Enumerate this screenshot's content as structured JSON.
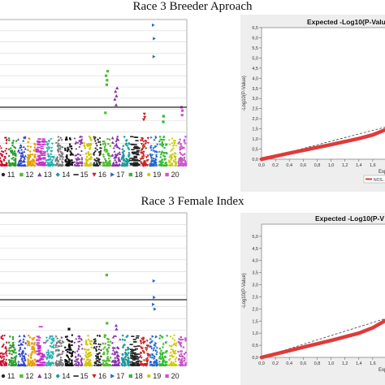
{
  "figure": {
    "title_top": "Race 3 Breeder Aproach",
    "title_bottom": "Race 3 Female Index"
  },
  "chart_data": [
    {
      "type": "scatter",
      "subtype": "manhattan",
      "panel": "top-left",
      "threshold": 5.2,
      "legend": [
        "11",
        "12",
        "13",
        "14",
        "15",
        "16",
        "17",
        "18",
        "19",
        "20"
      ],
      "chromosome_colors": [
        "#c8102e",
        "#2e9e2e",
        "#3344cc",
        "#e6a000",
        "#c830c8",
        "#20b0b0",
        "#777777",
        "#111111",
        "#8a3aa8",
        "#d4c400",
        "#2a2a2a",
        "#55bb33",
        "#8833aa",
        "#1b9a9a",
        "#222222",
        "#cc2222",
        "#2266cc",
        "#33bb33",
        "#cccc00",
        "#cc55cc"
      ],
      "peaks": [
        {
          "chr": 12,
          "values": [
            7.2,
            7.6,
            8.0,
            8.4,
            4.7
          ]
        },
        {
          "chr": 13,
          "values": [
            5.4,
            6.2,
            6.6,
            6.9,
            5.9
          ]
        },
        {
          "chr": 16,
          "values": [
            4.6,
            4.3,
            4.1
          ]
        },
        {
          "chr": 17,
          "values": [
            9.7,
            11.3,
            12.5
          ]
        },
        {
          "chr": 18,
          "values": [
            3.9,
            4.4
          ]
        },
        {
          "chr": 20,
          "values": [
            4.5,
            4.9,
            5.2
          ]
        }
      ]
    },
    {
      "type": "line",
      "subtype": "qq-plot",
      "panel": "top-right",
      "title": "Expected -Log10(P-Value)",
      "ylabel": "-Log10(P-Value)",
      "xlabel": "Expe",
      "yticks": [
        "0,0",
        "0,5",
        "1,0",
        "1,5",
        "2,0",
        "2,5",
        "3,0",
        "3,5",
        "4,0",
        "4,5",
        "5,0",
        "5,5",
        "6,0",
        "6,5"
      ],
      "xticks": [
        "0,0",
        "0,2",
        "0,4",
        "0,6",
        "0,8",
        "1,0",
        "1,2",
        "1,4",
        "1,6"
      ],
      "ylim": [
        0,
        6.5
      ],
      "xlim": [
        0,
        1.8
      ],
      "legend": "NOS...",
      "series": [
        {
          "x": [
            0.0,
            0.2,
            0.4,
            0.6,
            0.8,
            1.0,
            1.2,
            1.4,
            1.6,
            1.8
          ],
          "y": [
            0.0,
            0.15,
            0.3,
            0.44,
            0.58,
            0.72,
            0.87,
            1.02,
            1.2,
            1.48
          ]
        }
      ],
      "reference": {
        "x": [
          0,
          1.8
        ],
        "y": [
          0,
          1.6
        ]
      }
    },
    {
      "type": "scatter",
      "subtype": "manhattan",
      "panel": "bottom-left",
      "threshold": 5.6,
      "legend": [
        "11",
        "12",
        "13",
        "14",
        "15",
        "16",
        "17",
        "18",
        "19",
        "20"
      ],
      "chromosome_colors": [
        "#c8102e",
        "#2e9e2e",
        "#3344cc",
        "#e6a000",
        "#c830c8",
        "#20b0b0",
        "#777777",
        "#111111",
        "#8a3aa8",
        "#d4c400",
        "#2a2a2a",
        "#55bb33",
        "#8833aa",
        "#1b9a9a",
        "#222222",
        "#cc2222",
        "#2266cc",
        "#33bb33",
        "#cccc00",
        "#cc55cc"
      ],
      "peaks": [
        {
          "chr": 12,
          "values": [
            7.7,
            3.6
          ]
        },
        {
          "chr": 13,
          "values": [
            3.4,
            3.1
          ]
        },
        {
          "chr": 17,
          "values": [
            7.2,
            5.8,
            5.2,
            4.8
          ]
        },
        {
          "chr": 5,
          "values": [
            3.3
          ]
        },
        {
          "chr": 8,
          "values": [
            3.1
          ]
        }
      ]
    },
    {
      "type": "line",
      "subtype": "qq-plot",
      "panel": "bottom-right",
      "title": "Expected -Log10(P-V",
      "ylabel": "-Log10(P-Value)",
      "xlabel": "Expe",
      "yticks": [
        "0,0",
        "0,5",
        "1,0",
        "1,5",
        "2,0",
        "2,5",
        "3,0",
        "3,5",
        "4,0",
        "4,5",
        "5,0"
      ],
      "xticks": [
        "0,0",
        "0,2",
        "0,4",
        "0,6",
        "0,8",
        "1,0",
        "1,2",
        "1,4",
        "1,6"
      ],
      "ylim": [
        0,
        5.5
      ],
      "xlim": [
        0,
        1.8
      ],
      "legend": "NOS...",
      "series": [
        {
          "x": [
            0.0,
            0.2,
            0.4,
            0.6,
            0.8,
            1.0,
            1.2,
            1.4,
            1.6,
            1.8
          ],
          "y": [
            0.0,
            0.14,
            0.28,
            0.42,
            0.56,
            0.7,
            0.85,
            1.0,
            1.22,
            1.55
          ]
        }
      ],
      "reference": {
        "x": [
          0,
          1.8
        ],
        "y": [
          0,
          1.62
        ]
      }
    }
  ]
}
